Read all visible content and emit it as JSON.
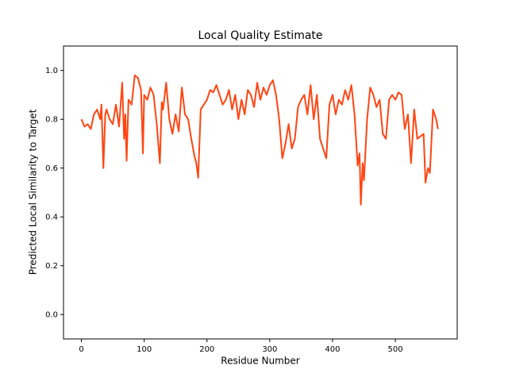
{
  "chart_data": {
    "type": "line",
    "title": "Local Quality Estimate",
    "x_label": "Residue Number",
    "y_label": "Predicted Local Similarity to Target",
    "x": [
      0,
      5,
      10,
      15,
      20,
      25,
      30,
      32,
      35,
      38,
      40,
      45,
      50,
      55,
      60,
      65,
      68,
      70,
      72,
      75,
      80,
      85,
      90,
      95,
      98,
      100,
      105,
      110,
      115,
      120,
      125,
      128,
      130,
      135,
      140,
      145,
      150,
      155,
      160,
      165,
      170,
      175,
      180,
      183,
      186,
      190,
      195,
      200,
      205,
      210,
      215,
      220,
      225,
      230,
      235,
      240,
      245,
      250,
      255,
      260,
      265,
      270,
      275,
      280,
      285,
      290,
      295,
      300,
      305,
      310,
      315,
      320,
      325,
      330,
      335,
      340,
      345,
      350,
      355,
      360,
      365,
      370,
      375,
      380,
      385,
      390,
      395,
      400,
      405,
      410,
      415,
      420,
      425,
      430,
      435,
      440,
      443,
      445,
      448,
      450,
      455,
      460,
      465,
      470,
      475,
      480,
      485,
      490,
      495,
      500,
      505,
      510,
      515,
      520,
      525,
      530,
      535,
      540,
      545,
      548,
      552,
      555,
      560,
      565,
      568
    ],
    "series": [
      {
        "name": "Predicted Local Similarity",
        "color": "#ff4512",
        "values": [
          0.8,
          0.77,
          0.78,
          0.76,
          0.82,
          0.84,
          0.8,
          0.86,
          0.6,
          0.82,
          0.84,
          0.8,
          0.78,
          0.86,
          0.77,
          0.95,
          0.72,
          0.82,
          0.63,
          0.88,
          0.86,
          0.98,
          0.97,
          0.92,
          0.66,
          0.9,
          0.88,
          0.93,
          0.9,
          0.78,
          0.62,
          0.87,
          0.84,
          0.95,
          0.8,
          0.74,
          0.82,
          0.75,
          0.93,
          0.82,
          0.8,
          0.72,
          0.65,
          0.62,
          0.56,
          0.84,
          0.86,
          0.88,
          0.92,
          0.91,
          0.94,
          0.9,
          0.86,
          0.88,
          0.92,
          0.84,
          0.9,
          0.8,
          0.88,
          0.82,
          0.92,
          0.9,
          0.85,
          0.95,
          0.88,
          0.93,
          0.9,
          0.94,
          0.96,
          0.9,
          0.8,
          0.64,
          0.7,
          0.78,
          0.68,
          0.72,
          0.85,
          0.88,
          0.9,
          0.82,
          0.94,
          0.8,
          0.9,
          0.72,
          0.68,
          0.64,
          0.86,
          0.9,
          0.82,
          0.88,
          0.86,
          0.92,
          0.88,
          0.94,
          0.82,
          0.61,
          0.66,
          0.45,
          0.62,
          0.55,
          0.8,
          0.93,
          0.9,
          0.85,
          0.88,
          0.74,
          0.72,
          0.88,
          0.9,
          0.88,
          0.91,
          0.9,
          0.76,
          0.82,
          0.62,
          0.84,
          0.72,
          0.73,
          0.74,
          0.54,
          0.6,
          0.58,
          0.84,
          0.8,
          0.76
        ]
      }
    ],
    "xlim": [
      -28.5,
      598.5
    ],
    "ylim": [
      -0.1,
      1.1
    ],
    "xticks": [
      0,
      100,
      200,
      300,
      400,
      500
    ],
    "yticks": [
      {
        "value": 0,
        "label": "0.0"
      },
      {
        "value": 0.2,
        "label": "0.2"
      },
      {
        "value": 0.4,
        "label": "0.4"
      },
      {
        "value": 0.6,
        "label": "0.6"
      },
      {
        "value": 0.8,
        "label": "0.8"
      },
      {
        "value": 1,
        "label": "1.0"
      }
    ]
  }
}
